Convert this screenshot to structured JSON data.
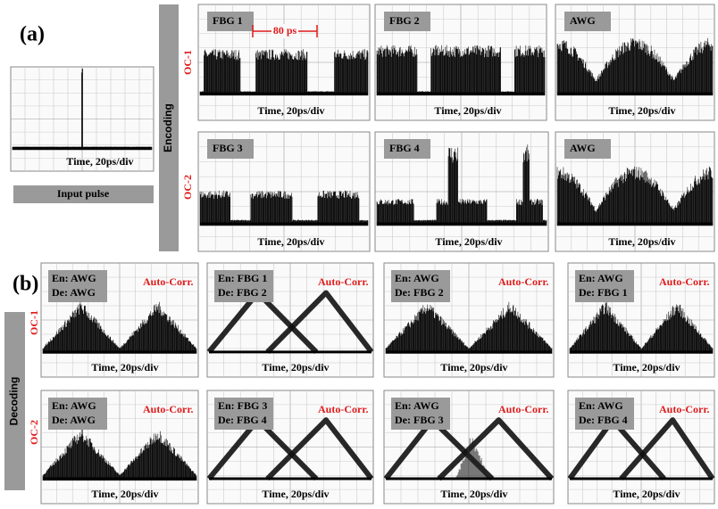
{
  "panel_a": {
    "label": "(a)",
    "group": "Encoding",
    "input": {
      "axis": "Time, 20ps/div",
      "caption": "Input pulse"
    },
    "rows": [
      {
        "label": "OC-1",
        "plots": [
          {
            "tag": "FBG 1",
            "note": "80 ps",
            "axis": "Time, 20ps/div"
          },
          {
            "tag": "FBG 2",
            "axis": "Time, 20ps/div"
          },
          {
            "tag": "AWG",
            "axis": "Time, 20ps/div"
          }
        ]
      },
      {
        "label": "OC-2",
        "plots": [
          {
            "tag": "FBG 3",
            "axis": "Time, 20ps/div"
          },
          {
            "tag": "FBG 4",
            "axis": "Time, 20ps/div"
          },
          {
            "tag": "AWG",
            "axis": "Time, 20ps/div"
          }
        ]
      }
    ]
  },
  "panel_b": {
    "label": "(b)",
    "group": "Decoding",
    "rows": [
      {
        "label": "OC-1",
        "plots": [
          {
            "encoder": "En: AWG",
            "decoder": "De: AWG",
            "note": "Auto-Corr.",
            "axis": "Time, 20ps/div"
          },
          {
            "encoder": "En: FBG 1",
            "decoder": "De: FBG 2",
            "note": "Auto-Corr.",
            "axis": "Time, 20ps/div"
          },
          {
            "encoder": "En: AWG",
            "decoder": "De: FBG 2",
            "note": "Auto-Corr.",
            "axis": "Time, 20ps/div"
          },
          {
            "encoder": "En: AWG",
            "decoder": "De: FBG 1",
            "note": "Auto-Corr.",
            "axis": "Time, 20ps/div"
          }
        ]
      },
      {
        "label": "OC-2",
        "plots": [
          {
            "encoder": "En: AWG",
            "decoder": "De: AWG",
            "note": "Auto-Corr.",
            "axis": "Time, 20ps/div"
          },
          {
            "encoder": "En: FBG 3",
            "decoder": "De: FBG 4",
            "note": "Auto-Corr.",
            "axis": "Time, 20ps/div"
          },
          {
            "encoder": "En: AWG",
            "decoder": "De: FBG 3",
            "note": "Auto-Corr.",
            "axis": "Time, 20ps/div"
          },
          {
            "encoder": "En: AWG",
            "decoder": "De: FBG 4",
            "note": "Auto-Corr.",
            "axis": "Time, 20ps/div"
          }
        ]
      }
    ]
  }
}
